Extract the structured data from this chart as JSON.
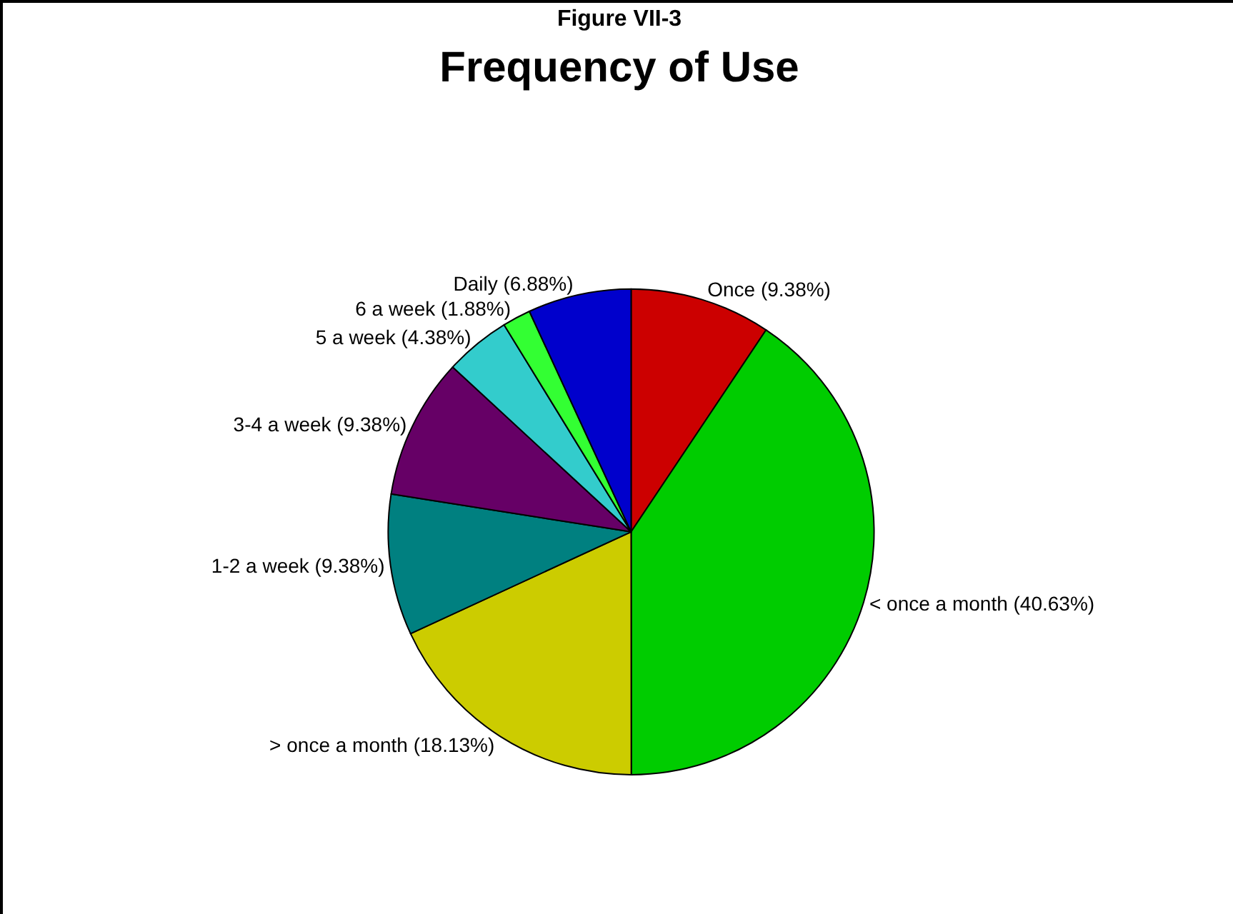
{
  "chart_data": {
    "type": "pie",
    "title": "Frequency of Use",
    "subtitle": "Figure VII-3",
    "categories": [
      "Once",
      "< once a month",
      "> once a month",
      "1-2 a week",
      "3-4 a week",
      "5 a week",
      "6 a week",
      "Daily"
    ],
    "values": [
      9.38,
      40.63,
      18.13,
      9.38,
      9.38,
      4.38,
      1.88,
      6.88
    ],
    "value_labels": [
      "(9.38%)",
      "(40.63%)",
      "(18.13%)",
      "(9.38%)",
      "(9.38%)",
      "(4.38%)",
      "(1.88%)",
      "(6.88%)"
    ],
    "colors": [
      "#cc0000",
      "#00cc00",
      "#cccc00",
      "#008080",
      "#660066",
      "#33cccc",
      "#33ff33",
      "#0000cc"
    ],
    "legend": false
  }
}
